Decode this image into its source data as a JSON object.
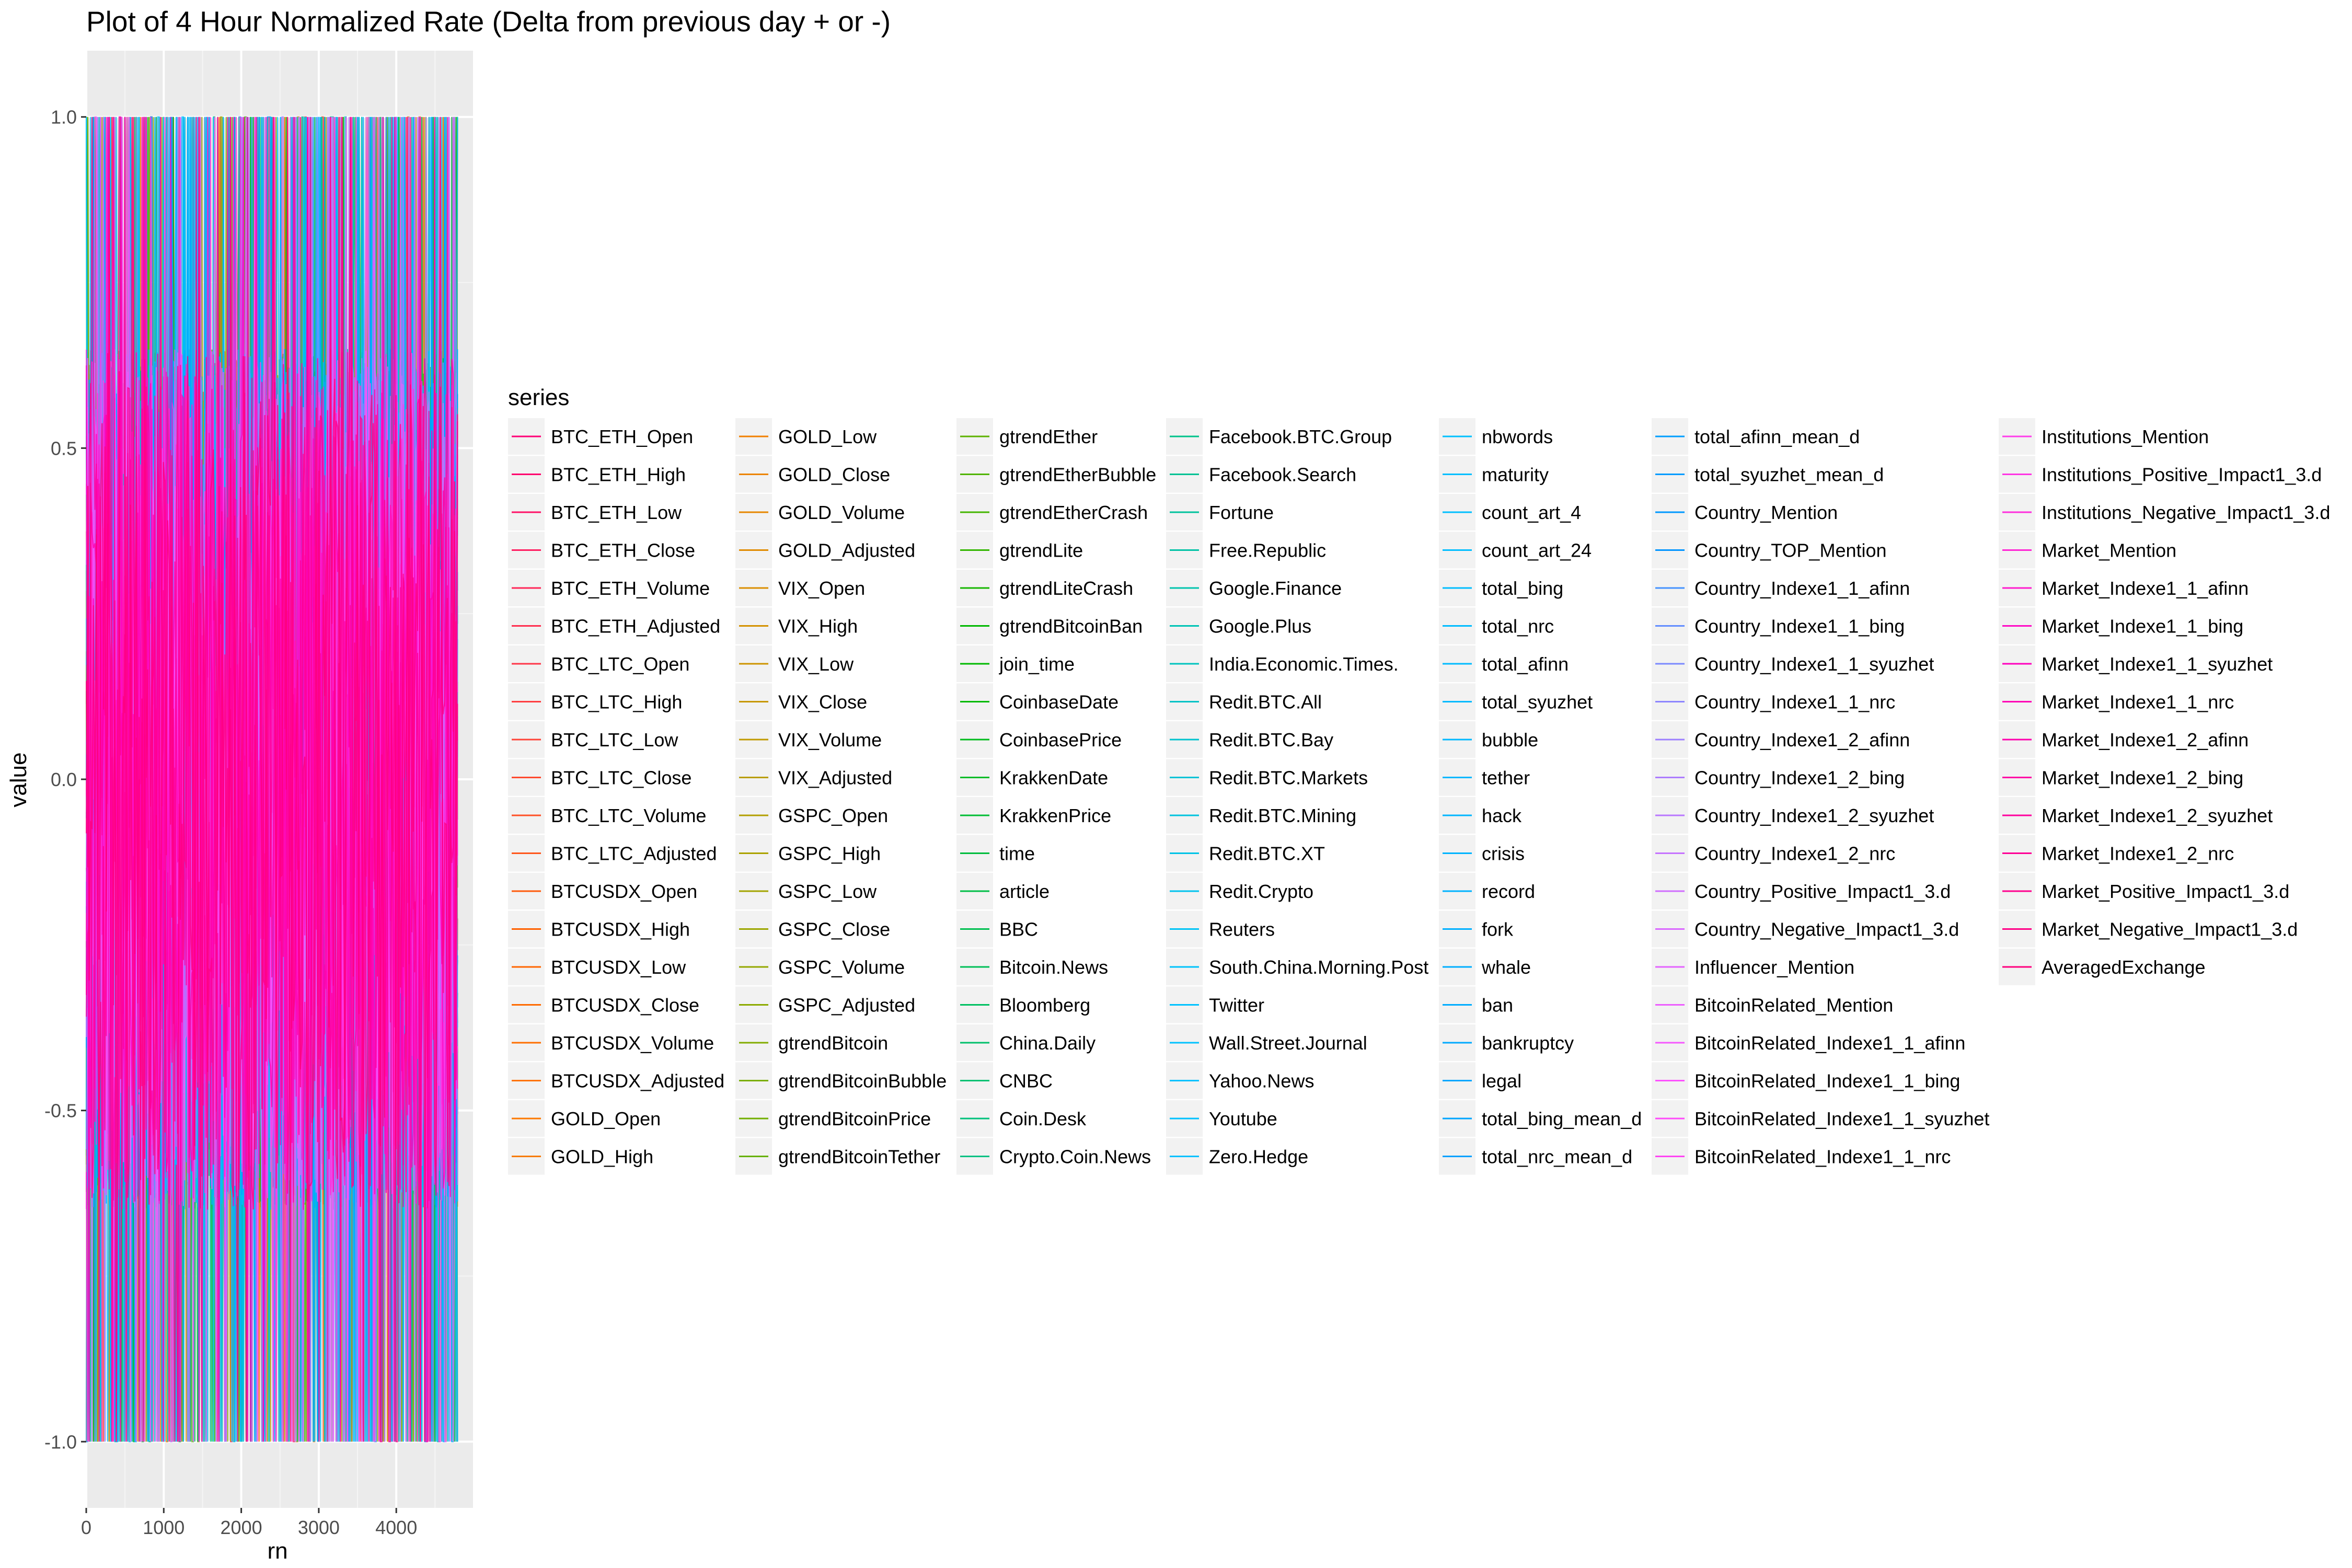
{
  "chart_data": {
    "type": "line",
    "title": "Plot of 4 Hour Normalized Rate (Delta from previous day + or -)",
    "xlabel": "rn",
    "ylabel": "value",
    "xlim": [
      0,
      4990
    ],
    "ylim": [
      -1.1,
      1.1
    ],
    "x_ticks": [
      0,
      1000,
      2000,
      3000,
      4000
    ],
    "x_tick_labels": [
      "0",
      "1000",
      "2000",
      "3000",
      "4000"
    ],
    "y_ticks": [
      -1.0,
      -0.5,
      0.0,
      0.5,
      1.0
    ],
    "y_tick_labels": [
      "-1.0",
      "-0.5",
      "0.0",
      "0.5",
      "1.0"
    ],
    "x_data_range": [
      1,
      4790
    ],
    "value_range": [
      -1.0,
      1.0
    ],
    "grid": true,
    "legend_position": "right",
    "legend_title": "series",
    "series_names": [
      "BTC_ETH_Open",
      "BTC_ETH_High",
      "BTC_ETH_Low",
      "BTC_ETH_Close",
      "BTC_ETH_Volume",
      "BTC_ETH_Adjusted",
      "BTC_LTC_Open",
      "BTC_LTC_High",
      "BTC_LTC_Low",
      "BTC_LTC_Close",
      "BTC_LTC_Volume",
      "BTC_LTC_Adjusted",
      "BTCUSDX_Open",
      "BTCUSDX_High",
      "BTCUSDX_Low",
      "BTCUSDX_Close",
      "BTCUSDX_Volume",
      "BTCUSDX_Adjusted",
      "GOLD_Open",
      "GOLD_High",
      "GOLD_Low",
      "GOLD_Close",
      "GOLD_Volume",
      "GOLD_Adjusted",
      "VIX_Open",
      "VIX_High",
      "VIX_Low",
      "VIX_Close",
      "VIX_Volume",
      "VIX_Adjusted",
      "GSPC_Open",
      "GSPC_High",
      "GSPC_Low",
      "GSPC_Close",
      "GSPC_Volume",
      "GSPC_Adjusted",
      "gtrendBitcoin",
      "gtrendBitcoinBubble",
      "gtrendBitcoinPrice",
      "gtrendBitcoinTether",
      "gtrendEther",
      "gtrendEtherBubble",
      "gtrendEtherCrash",
      "gtrendLite",
      "gtrendLiteCrash",
      "gtrendBitcoinBan",
      "join_time",
      "CoinbaseDate",
      "CoinbasePrice",
      "KrakkenDate",
      "KrakkenPrice",
      "time",
      "article",
      "BBC",
      "Bitcoin.News",
      "Bloomberg",
      "China.Daily",
      "CNBC",
      "Coin.Desk",
      "Crypto.Coin.News",
      "Facebook.BTC.Group",
      "Facebook.Search",
      "Fortune",
      "Free.Republic",
      "Google.Finance",
      "Google.Plus",
      "India.Economic.Times.",
      "Redit.BTC.All",
      "Redit.BTC.Bay",
      "Redit.BTC.Markets",
      "Redit.BTC.Mining",
      "Redit.BTC.XT",
      "Redit.Crypto",
      "Reuters",
      "South.China.Morning.Post",
      "Twitter",
      "Wall.Street.Journal",
      "Yahoo.News",
      "Youtube",
      "Zero.Hedge",
      "nbwords",
      "maturity",
      "count_art_4",
      "count_art_24",
      "total_bing",
      "total_nrc",
      "total_afinn",
      "total_syuzhet",
      "bubble",
      "tether",
      "hack",
      "crisis",
      "record",
      "fork",
      "whale",
      "ban",
      "bankruptcy",
      "legal",
      "total_bing_mean_d",
      "total_nrc_mean_d",
      "total_afinn_mean_d",
      "total_syuzhet_mean_d",
      "Country_Mention",
      "Country_TOP_Mention",
      "Country_Indexe1_1_afinn",
      "Country_Indexe1_1_bing",
      "Country_Indexe1_1_syuzhet",
      "Country_Indexe1_1_nrc",
      "Country_Indexe1_2_afinn",
      "Country_Indexe1_2_bing",
      "Country_Indexe1_2_syuzhet",
      "Country_Indexe1_2_nrc",
      "Country_Positive_Impact1_3.d",
      "Country_Negative_Impact1_3.d",
      "Influencer_Mention",
      "BitcoinRelated_Mention",
      "BitcoinRelated_Indexe1_1_afinn",
      "BitcoinRelated_Indexe1_1_bing",
      "BitcoinRelated_Indexe1_1_syuzhet",
      "BitcoinRelated_Indexe1_1_nrc",
      "Institutions_Mention",
      "Institutions_Positive_Impact1_3.d",
      "Institutions_Negative_Impact1_3.d",
      "Market_Mention",
      "Market_Indexe1_1_afinn",
      "Market_Indexe1_1_bing",
      "Market_Indexe1_1_syuzhet",
      "Market_Indexe1_1_nrc",
      "Market_Indexe1_2_afinn",
      "Market_Indexe1_2_bing",
      "Market_Indexe1_2_syuzhet",
      "Market_Indexe1_2_nrc",
      "Market_Positive_Impact1_3.d",
      "Market_Negative_Impact1_3.d",
      "AveragedExchange"
    ],
    "legend_columns": [
      20,
      20,
      20,
      20,
      20,
      20,
      15
    ]
  }
}
